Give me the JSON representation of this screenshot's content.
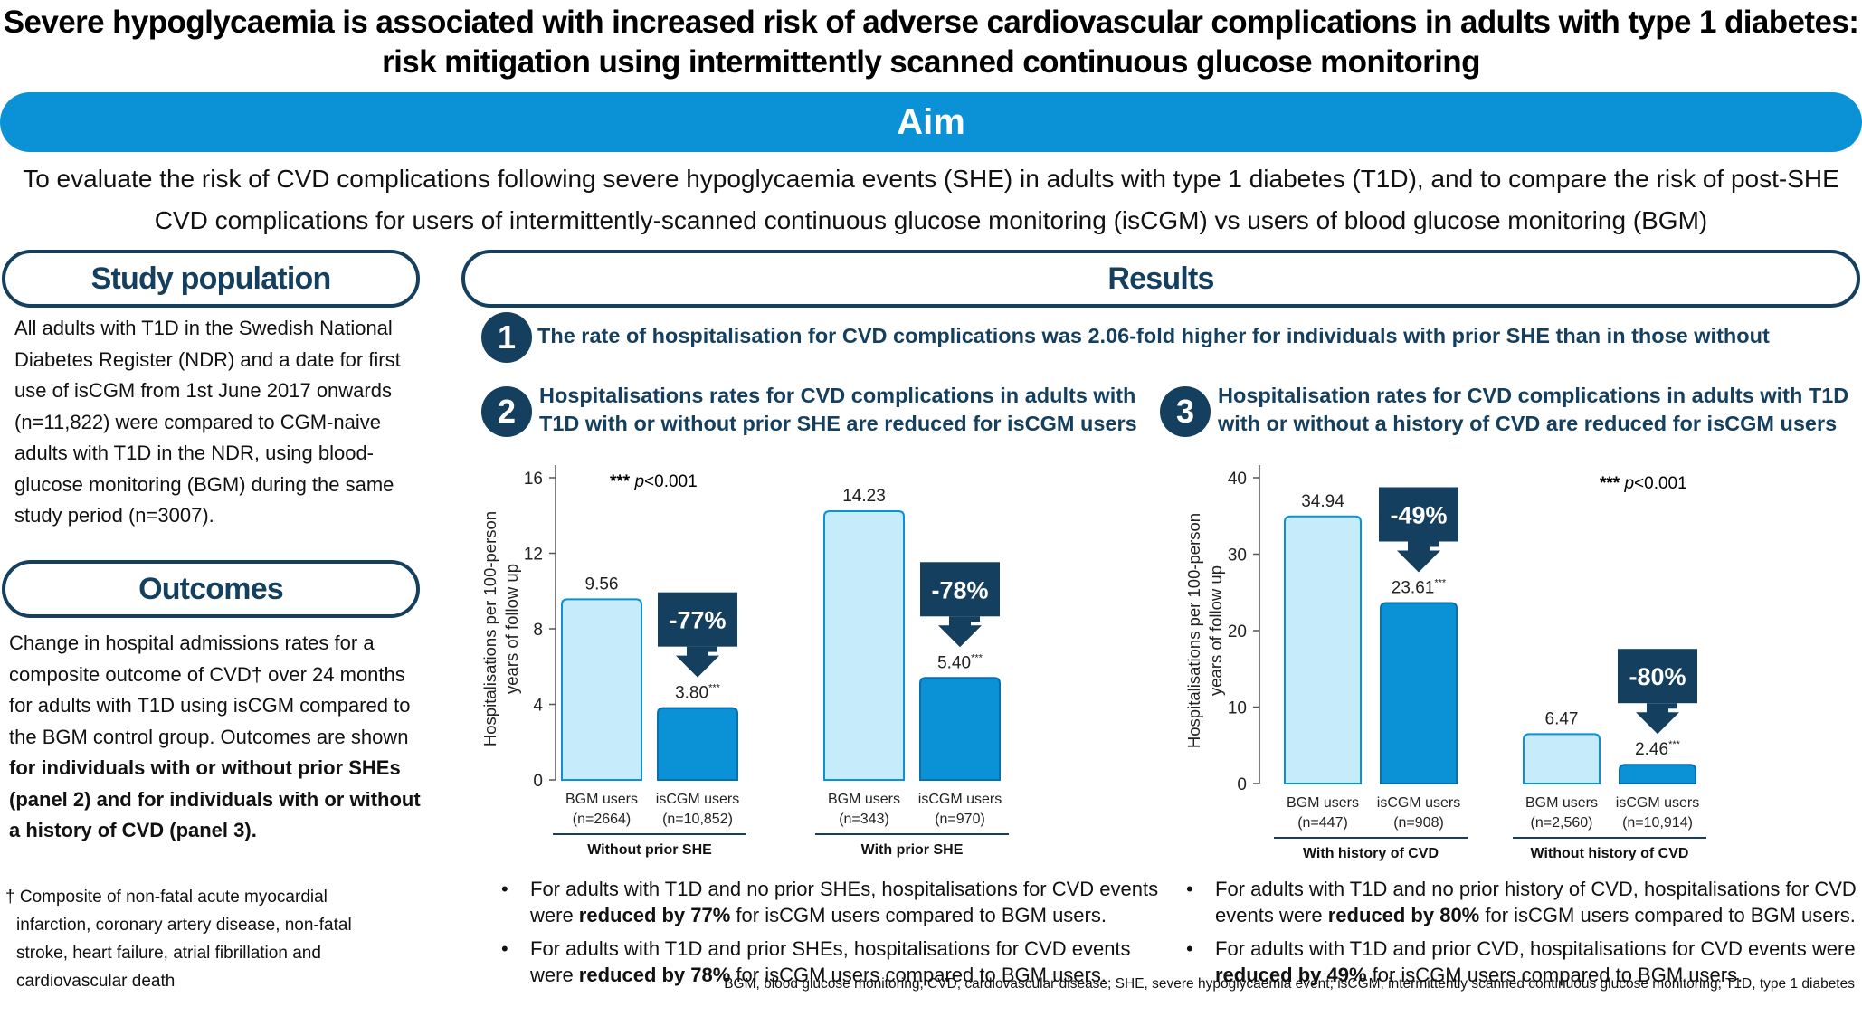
{
  "title": {
    "line1": "Severe hypoglycaemia is associated with increased risk of adverse cardiovascular complications in adults with type 1 diabetes:",
    "line2": "risk mitigation using intermittently scanned continuous glucose monitoring"
  },
  "aim": {
    "heading": "Aim",
    "line1": "To evaluate the risk of CVD complications following severe hypoglycaemia events (SHE) in adults with type 1 diabetes (T1D), and to compare the risk of post-SHE",
    "line2": "CVD complications for users of intermittently-scanned continuous glucose monitoring (isCGM) vs users of blood glucose monitoring (BGM)"
  },
  "study_population": {
    "heading": "Study population",
    "lines": [
      "All adults with T1D in the Swedish National",
      "Diabetes Register (NDR) and a date for first",
      "use of isCGM from 1st June 2017 onwards",
      "(n=11,822) were compared to CGM-naive",
      "adults with T1D in the NDR, using blood-",
      "glucose monitoring (BGM) during the same",
      "study period (n=3007)."
    ]
  },
  "outcomes": {
    "heading": "Outcomes",
    "lines": [
      "Change in hospital admissions rates for a",
      "composite outcome of CVD† over 24 months",
      "for adults with T1D using isCGM compared to",
      "the BGM control group. Outcomes are shown",
      "for individuals with or without prior SHEs",
      "(panel 2) and for individuals with or without",
      "a history of CVD (panel 3)."
    ]
  },
  "footnote": {
    "lines": [
      "† Composite of non-fatal acute myocardial",
      "infarction, coronary artery disease, non-fatal",
      "stroke, heart failure, atrial fibrillation and",
      "cardiovascular death"
    ]
  },
  "results": {
    "heading": "Results",
    "finding1": {
      "number": "1",
      "text": "The rate of hospitalisation for CVD complications was 2.06-fold higher for individuals with prior SHE than in those without"
    },
    "panel2": {
      "number": "2",
      "heading_line1": "Hospitalisations rates for CVD complications in adults with",
      "heading_line2": "T1D with or without prior SHE are reduced for isCGM users",
      "bullet1_line1": "For adults with T1D and no prior SHEs, hospitalisations for CVD events",
      "bullet1_pre": "were ",
      "bullet1_bold": "reduced by 77%",
      "bullet1_post": " for isCGM users compared to BGM users.",
      "bullet2_line1": "For adults with T1D and prior SHEs, hospitalisations for CVD events",
      "bullet2_pre": "were ",
      "bullet2_bold": "reduced by 78%",
      "bullet2_post": " for isCGM users compared to BGM users."
    },
    "panel3": {
      "number": "3",
      "heading_line1": "Hospitalisation rates for CVD complications in adults with T1D",
      "heading_line2": "with or without a history of CVD are reduced for isCGM users",
      "bullet1_line1": "For adults with T1D and no prior history of CVD, hospitalisations for CVD",
      "bullet1_pre": "events were ",
      "bullet1_bold": "reduced by 80%",
      "bullet1_post": " for isCGM users compared to BGM users.",
      "bullet2_line1": "For adults with T1D and prior CVD, hospitalisations for CVD events were",
      "bullet2_pre": "",
      "bullet2_bold": "reduced by 49%",
      "bullet2_post": " for isCGM users compared to BGM users."
    },
    "bullet_glyph": "•"
  },
  "abbreviations": "BGM, blood glucose monitoring; CVD, cardiovascular disease; SHE, severe hypoglycaemia event; isCGM, intermittently scanned continuous glucose monitoring; T1D, type 1 diabetes",
  "colors": {
    "navy": "#143f5e",
    "blue": "#0a91d6",
    "light_bar": "#c6ebfb",
    "dark_bar": "#0a91d6"
  },
  "chart_data": [
    {
      "type": "bar",
      "ylabel": "Hospitalisations per 100-person years of follow up",
      "ylim": [
        0,
        16
      ],
      "yticks": [
        "0",
        "4",
        "8",
        "12",
        "16"
      ],
      "significance": "*** p<0.001",
      "groups": [
        {
          "label": "Without prior SHE",
          "bars": [
            {
              "label": "BGM users",
              "n": "(n=2664)",
              "value": 9.56,
              "value_label": "9.56",
              "sig": ""
            },
            {
              "label": "isCGM users",
              "n": "(n=10,852)",
              "value": 3.8,
              "value_label": "3.80",
              "sig": "***"
            }
          ],
          "reduction": "-77%"
        },
        {
          "label": "With prior SHE",
          "bars": [
            {
              "label": "BGM users",
              "n": "(n=343)",
              "value": 14.23,
              "value_label": "14.23",
              "sig": ""
            },
            {
              "label": "isCGM users",
              "n": "(n=970)",
              "value": 5.4,
              "value_label": "5.40",
              "sig": "***"
            }
          ],
          "reduction": "-78%"
        }
      ]
    },
    {
      "type": "bar",
      "ylabel": "Hospitalisations per 100-person years of follow up",
      "ylim": [
        0,
        40
      ],
      "yticks": [
        "0",
        "10",
        "20",
        "30",
        "40"
      ],
      "significance": "*** p<0.001",
      "groups": [
        {
          "label": "With history of CVD",
          "bars": [
            {
              "label": "BGM users",
              "n": "(n=447)",
              "value": 34.94,
              "value_label": "34.94",
              "sig": ""
            },
            {
              "label": "isCGM users",
              "n": "(n=908)",
              "value": 23.61,
              "value_label": "23.61",
              "sig": "***"
            }
          ],
          "reduction": "-49%"
        },
        {
          "label": "Without history of CVD",
          "bars": [
            {
              "label": "BGM users",
              "n": "(n=2,560)",
              "value": 6.47,
              "value_label": "6.47",
              "sig": ""
            },
            {
              "label": "isCGM users",
              "n": "(n=10,914)",
              "value": 2.46,
              "value_label": "2.46",
              "sig": "***"
            }
          ],
          "reduction": "-80%"
        }
      ]
    }
  ]
}
